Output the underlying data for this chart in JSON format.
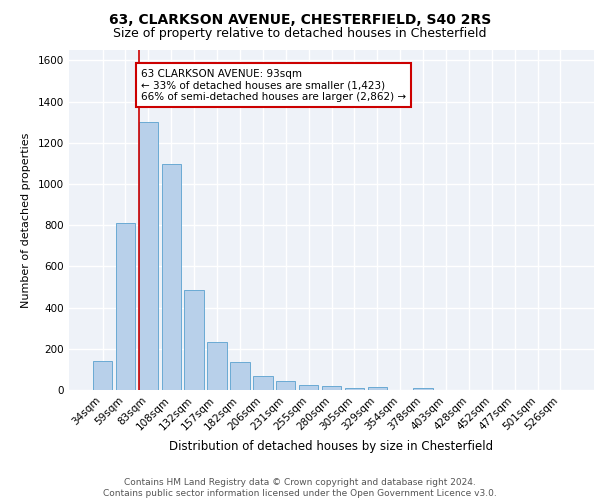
{
  "title1": "63, CLARKSON AVENUE, CHESTERFIELD, S40 2RS",
  "title2": "Size of property relative to detached houses in Chesterfield",
  "xlabel": "Distribution of detached houses by size in Chesterfield",
  "ylabel": "Number of detached properties",
  "bin_labels": [
    "34sqm",
    "59sqm",
    "83sqm",
    "108sqm",
    "132sqm",
    "157sqm",
    "182sqm",
    "206sqm",
    "231sqm",
    "255sqm",
    "280sqm",
    "305sqm",
    "329sqm",
    "354sqm",
    "378sqm",
    "403sqm",
    "428sqm",
    "452sqm",
    "477sqm",
    "501sqm",
    "526sqm"
  ],
  "bar_heights": [
    143,
    810,
    1300,
    1095,
    485,
    233,
    135,
    70,
    43,
    23,
    18,
    10,
    15,
    0,
    10,
    0,
    0,
    0,
    0,
    0,
    0
  ],
  "bar_color": "#b8d0ea",
  "bar_edgecolor": "#6aaad4",
  "ylim": [
    0,
    1650
  ],
  "yticks": [
    0,
    200,
    400,
    600,
    800,
    1000,
    1200,
    1400,
    1600
  ],
  "red_line_bin_index": 2,
  "annotation_text": "63 CLARKSON AVENUE: 93sqm\n← 33% of detached houses are smaller (1,423)\n66% of semi-detached houses are larger (2,862) →",
  "annotation_box_color": "white",
  "annotation_box_edgecolor": "#cc0000",
  "footer_text": "Contains HM Land Registry data © Crown copyright and database right 2024.\nContains public sector information licensed under the Open Government Licence v3.0.",
  "background_color": "#eef2f8",
  "grid_color": "white",
  "title1_fontsize": 10,
  "title2_fontsize": 9,
  "xlabel_fontsize": 8.5,
  "ylabel_fontsize": 8,
  "tick_fontsize": 7.5,
  "annotation_fontsize": 7.5,
  "footer_fontsize": 6.5
}
